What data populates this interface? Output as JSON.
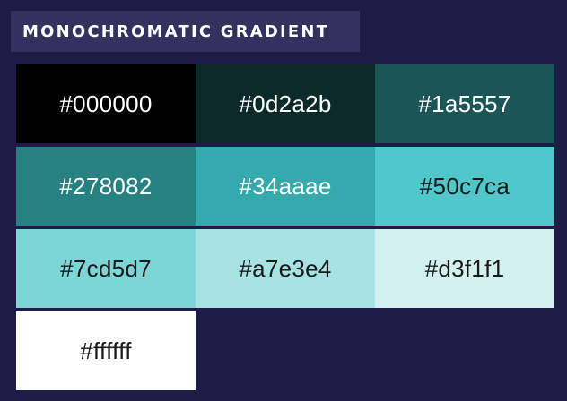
{
  "header": {
    "title": "MONOCHROMATIC GRADIENT"
  },
  "swatches": [
    {
      "label": "#000000",
      "color": "#000000",
      "text_color": "#ffffff"
    },
    {
      "label": "#0d2a2b",
      "color": "#0d2a2b",
      "text_color": "#ffffff"
    },
    {
      "label": "#1a5557",
      "color": "#1a5557",
      "text_color": "#ffffff"
    },
    {
      "label": "#278082",
      "color": "#278082",
      "text_color": "#ffffff"
    },
    {
      "label": "#34aaae",
      "color": "#34aaae",
      "text_color": "#ffffff"
    },
    {
      "label": "#50c7ca",
      "color": "#50c7ca",
      "text_color": "#1a1a1a"
    },
    {
      "label": "#7cd5d7",
      "color": "#7cd5d7",
      "text_color": "#1a1a1a"
    },
    {
      "label": "#a7e3e4",
      "color": "#a7e3e4",
      "text_color": "#1a1a1a"
    },
    {
      "label": "#d3f1f1",
      "color": "#d3f1f1",
      "text_color": "#1a1a1a"
    },
    {
      "label": "#ffffff",
      "color": "#ffffff",
      "text_color": "#1a1a1a"
    }
  ]
}
